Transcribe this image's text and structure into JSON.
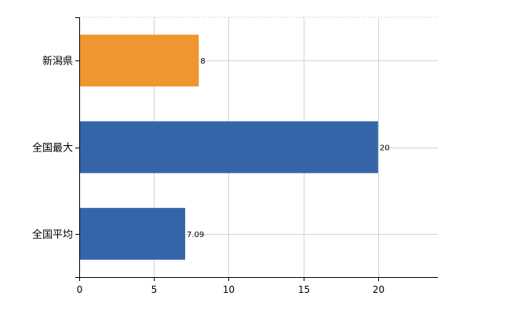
{
  "chart_data": {
    "type": "bar",
    "orientation": "horizontal",
    "categories": [
      "新潟県",
      "全国最大",
      "全国平均"
    ],
    "values": [
      8,
      20,
      7.09
    ],
    "value_labels": [
      "8",
      "20",
      "7.09"
    ],
    "bar_colors": [
      "#F0952F",
      "#3565A8",
      "#3565A8"
    ],
    "xlim": [
      0,
      24
    ],
    "xticks": [
      0,
      5,
      10,
      15,
      20
    ],
    "grid": true,
    "title": "",
    "xlabel": "",
    "ylabel": ""
  },
  "colors": {
    "highlight": "#F0952F",
    "primary": "#3565A8",
    "grid": "#d3d3d3",
    "axis": "#000000"
  }
}
